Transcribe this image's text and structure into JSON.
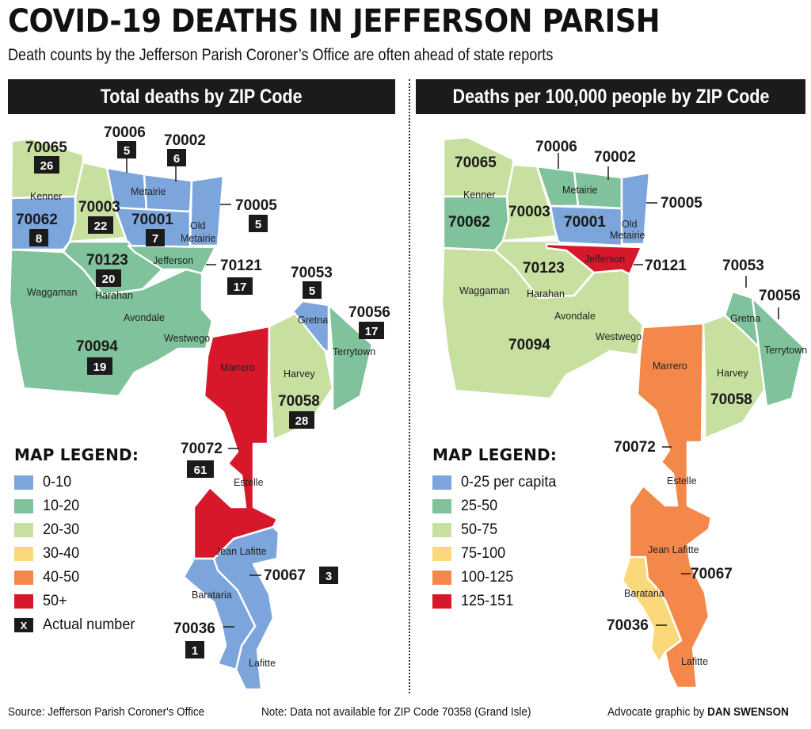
{
  "header": {
    "title": "COVID-19 DEATHS IN JEFFERSON PARISH",
    "subtitle": "Death counts by the Jefferson Parish Coroner’s Office are often ahead of state reports"
  },
  "colors": {
    "blue": "#7ba5db",
    "green": "#7fc29b",
    "light_green": "#c7df9f",
    "yellow": "#fbd87a",
    "orange": "#f4874a",
    "red": "#d7182a",
    "box": "#1b1b1b"
  },
  "left_panel": {
    "title": "Total deaths by ZIP Code",
    "legend": {
      "title": "MAP LEGEND:",
      "items": [
        {
          "label": "0-10",
          "color": "#7ba5db"
        },
        {
          "label": "10-20",
          "color": "#7fc29b"
        },
        {
          "label": "20-30",
          "color": "#c7df9f"
        },
        {
          "label": "30-40",
          "color": "#fbd87a"
        },
        {
          "label": "40-50",
          "color": "#f4874a"
        },
        {
          "label": "50+",
          "color": "#d7182a"
        }
      ],
      "actual_marker": "X",
      "actual_label": "Actual number"
    }
  },
  "right_panel": {
    "title": "Deaths per 100,000 people by ZIP Code",
    "legend": {
      "title": "MAP LEGEND:",
      "items": [
        {
          "label": "0-25 per capita",
          "color": "#7ba5db"
        },
        {
          "label": "25-50",
          "color": "#7fc29b"
        },
        {
          "label": "50-75",
          "color": "#c7df9f"
        },
        {
          "label": "75-100",
          "color": "#fbd87a"
        },
        {
          "label": "100-125",
          "color": "#f4874a"
        },
        {
          "label": "125-151",
          "color": "#d7182a"
        }
      ]
    }
  },
  "places": {
    "kenner": "Kenner",
    "metairie": "Metairie",
    "old": "Old",
    "old_metairie": "Metairie",
    "jefferson": "Jefferson",
    "waggaman": "Waggaman",
    "harahan": "Harahan",
    "avondale": "Avondale",
    "westwego": "Westwego",
    "marrero": "Marrero",
    "harvey": "Harvey",
    "gretna": "Gretna",
    "terrytown": "Terrytown",
    "estelle": "Estelle",
    "jean_lafitte": "Jean Lafitte",
    "barataria": "Barataria",
    "lafitte": "Lafitte"
  },
  "zips": {
    "z70065": {
      "zip": "70065",
      "deaths": "26",
      "left_color": "#c7df9f",
      "right_color": "#c7df9f"
    },
    "z70006": {
      "zip": "70006",
      "deaths": "5",
      "left_color": "#7ba5db",
      "right_color": "#7fc29b"
    },
    "z70002": {
      "zip": "70002",
      "deaths": "6",
      "left_color": "#7ba5db",
      "right_color": "#7fc29b"
    },
    "z70005": {
      "zip": "70005",
      "deaths": "5",
      "left_color": "#7ba5db",
      "right_color": "#7ba5db"
    },
    "z70062": {
      "zip": "70062",
      "deaths": "8",
      "left_color": "#7ba5db",
      "right_color": "#7fc29b"
    },
    "z70003": {
      "zip": "70003",
      "deaths": "22",
      "left_color": "#c7df9f",
      "right_color": "#c7df9f"
    },
    "z70001": {
      "zip": "70001",
      "deaths": "7",
      "left_color": "#7ba5db",
      "right_color": "#7ba5db"
    },
    "z70123": {
      "zip": "70123",
      "deaths": "20",
      "left_color": "#7fc29b",
      "right_color": "#c7df9f"
    },
    "z70121": {
      "zip": "70121",
      "deaths": "17",
      "left_color": "#7fc29b",
      "right_color": "#d7182a"
    },
    "z70053": {
      "zip": "70053",
      "deaths": "5",
      "left_color": "#7ba5db",
      "right_color": "#7fc29b"
    },
    "z70056": {
      "zip": "70056",
      "deaths": "17",
      "left_color": "#7fc29b",
      "right_color": "#7fc29b"
    },
    "z70094": {
      "zip": "70094",
      "deaths": "19",
      "left_color": "#7fc29b",
      "right_color": "#c7df9f"
    },
    "z70058": {
      "zip": "70058",
      "deaths": "28",
      "left_color": "#c7df9f",
      "right_color": "#c7df9f"
    },
    "z70072": {
      "zip": "70072",
      "deaths": "61",
      "left_color": "#d7182a",
      "right_color": "#f4874a"
    },
    "z70067": {
      "zip": "70067",
      "deaths": "3",
      "left_color": "#7ba5db",
      "right_color": "#f4874a"
    },
    "z70036": {
      "zip": "70036",
      "deaths": "1",
      "left_color": "#7ba5db",
      "right_color": "#fbd87a"
    }
  },
  "footer": {
    "source": "Source: Jefferson Parish Coroner's Office",
    "note": "Note: Data not available for ZIP Code 70358 (Grand Isle)",
    "credit_prefix": "Advocate graphic by ",
    "credit_name": "DAN SWENSON"
  }
}
